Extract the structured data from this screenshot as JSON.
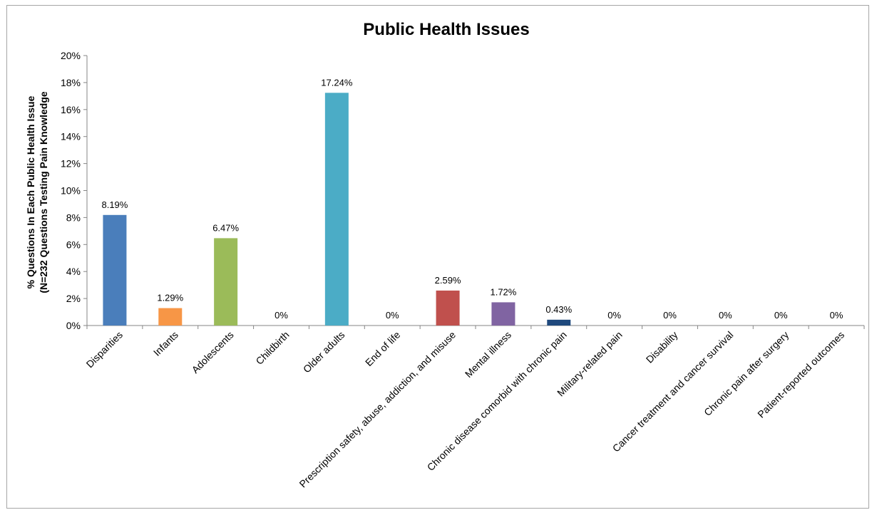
{
  "chart_data": {
    "type": "bar",
    "title": "Public Health Issues",
    "xlabel": "",
    "ylabel_lines": [
      "% Questions In Each Public Health Issue",
      "(N=232 Questions Testing Pain Knowledge"
    ],
    "ylim": [
      0,
      20
    ],
    "yticks": [
      0,
      2,
      4,
      6,
      8,
      10,
      12,
      14,
      16,
      18,
      20
    ],
    "ytick_labels": [
      "0%",
      "2%",
      "4%",
      "6%",
      "8%",
      "10%",
      "12%",
      "14%",
      "16%",
      "18%",
      "20%"
    ],
    "grid": false,
    "legend": "none",
    "categories": [
      "Disparities",
      "Infants",
      "Adolescents",
      "Childbirth",
      "Older adults",
      "End of life",
      "Prescription safety, abuse, addiction, and misuse",
      "Mental illness",
      "Chronic disease comorbid with chronic pain",
      "Military-related pain",
      "Disability",
      "Cancer treatment and cancer survival",
      "Chronic pain after surgery",
      "Patient-reported outcomes"
    ],
    "values": [
      8.19,
      1.29,
      6.47,
      0,
      17.24,
      0,
      2.59,
      1.72,
      0.43,
      0,
      0,
      0,
      0,
      0
    ],
    "data_labels": [
      "8.19%",
      "1.29%",
      "6.47%",
      "0%",
      "17.24%",
      "0%",
      "2.59%",
      "1.72%",
      "0.43%",
      "0%",
      "0%",
      "0%",
      "0%",
      "0%"
    ],
    "colors": [
      "#4a7ebb",
      "#f79646",
      "#9bbb59",
      "#8064a2",
      "#4bacc6",
      "#f79646",
      "#c0504d",
      "#8064a2",
      "#1f497d",
      "#4f81bd",
      "#c0504d",
      "#9bbb59",
      "#8064a2",
      "#4bacc6"
    ]
  }
}
